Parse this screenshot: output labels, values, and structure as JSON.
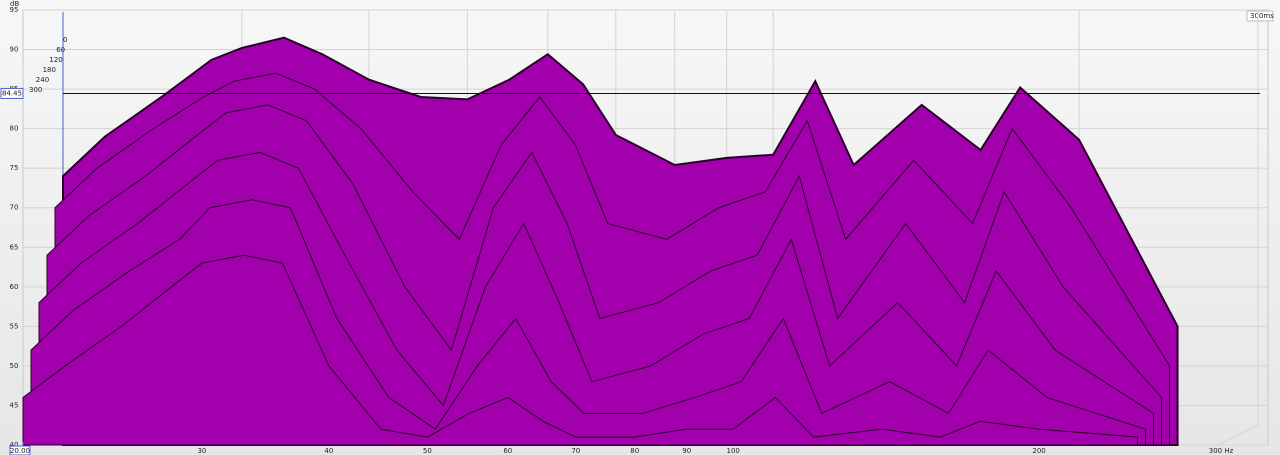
{
  "chart_data": {
    "type": "waterfall",
    "y_label": "dB",
    "x": [
      20,
      22,
      25,
      28,
      30,
      33,
      36,
      40,
      45,
      50,
      55,
      60,
      65,
      70,
      80,
      90,
      100,
      110,
      120,
      140,
      160,
      175,
      200,
      250
    ],
    "series": [
      {
        "name": "0",
        "color": "#a300ad",
        "values": [
          74,
          79,
          84,
          88.7,
          90.2,
          91.5,
          89.4,
          86.2,
          84,
          83.7,
          86.2,
          89.4,
          85.6,
          79.2,
          75.4,
          76.3,
          76.7,
          86,
          75.4,
          83,
          77.3,
          85.2,
          78.6,
          55
        ]
      },
      {
        "name": "60",
        "color": "#a300ad",
        "values": [
          70,
          75,
          80,
          84,
          86,
          87,
          85,
          80,
          72,
          66,
          78,
          84,
          78,
          68,
          66,
          70,
          72,
          81,
          66,
          76,
          68,
          80,
          70,
          50
        ]
      },
      {
        "name": "120",
        "color": "#a300ad",
        "values": [
          64,
          69,
          74,
          79,
          82,
          83,
          81,
          73,
          60,
          52,
          70,
          77,
          68,
          56,
          58,
          62,
          64,
          74,
          56,
          68,
          58,
          72,
          60,
          46
        ]
      },
      {
        "name": "180",
        "color": "#a300ad",
        "values": [
          58,
          63,
          68,
          73,
          76,
          77,
          75,
          64,
          52,
          45,
          60,
          68,
          58,
          48,
          50,
          54,
          56,
          66,
          50,
          58,
          50,
          62,
          52,
          44
        ]
      },
      {
        "name": "240",
        "color": "#a300ad",
        "values": [
          52,
          57,
          62,
          66,
          70,
          71,
          70,
          56,
          46,
          42,
          50,
          56,
          48,
          44,
          44,
          46,
          48,
          56,
          44,
          48,
          44,
          52,
          46,
          42
        ]
      },
      {
        "name": "300",
        "color": "#a300ad",
        "values": [
          46,
          50,
          55,
          60,
          63,
          64,
          63,
          50,
          42,
          41,
          44,
          46,
          43,
          41,
          41,
          42,
          42,
          46,
          41,
          42,
          41,
          43,
          42,
          41
        ]
      }
    ],
    "xlim": [
      20,
      300
    ],
    "xticks": [
      30,
      40,
      50,
      60,
      70,
      80,
      90,
      100,
      200,
      {
        "value": 300,
        "label": "300 Hz"
      }
    ],
    "x_log": true,
    "ylim": [
      40,
      95
    ],
    "yticks": [
      40,
      45,
      50,
      55,
      60,
      65,
      70,
      75,
      80,
      85,
      90,
      95
    ],
    "tlim": [
      0,
      300
    ],
    "t_end_label": "300ms",
    "grid": true,
    "cursor": {
      "y": 84.45,
      "x": {
        "value": 20,
        "label": "20.00"
      }
    }
  }
}
